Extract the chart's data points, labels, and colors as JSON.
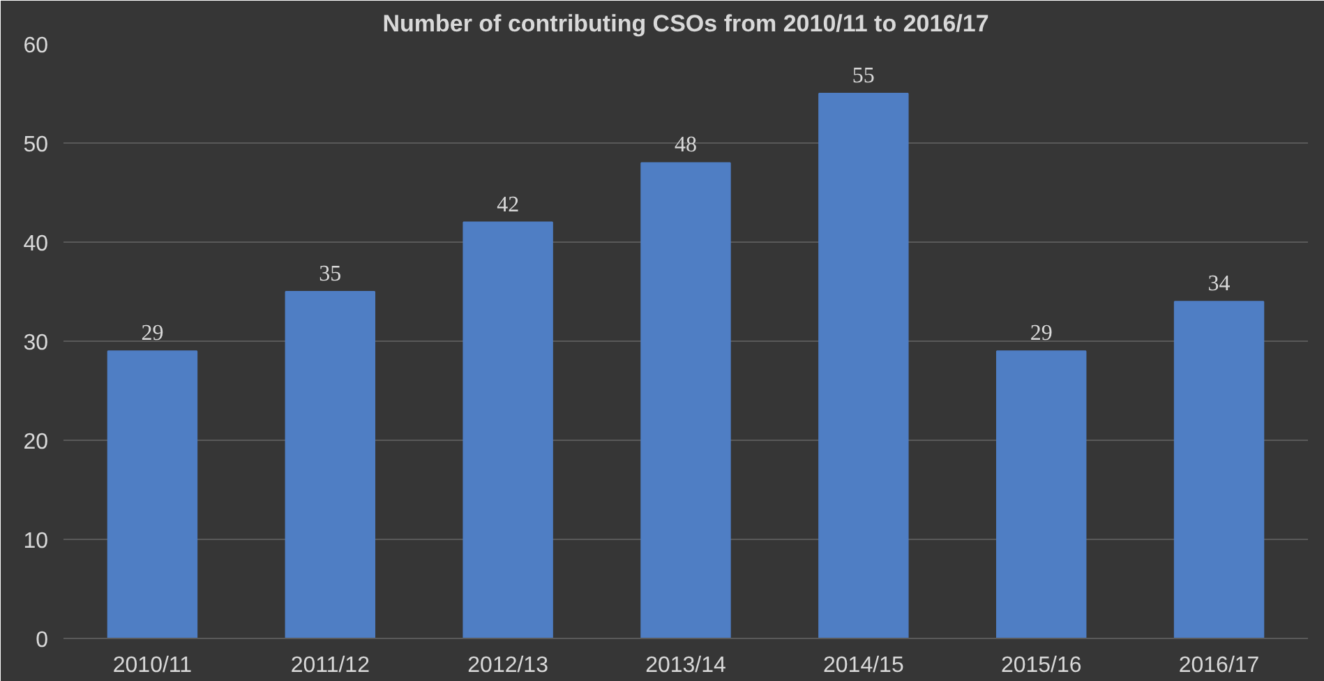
{
  "chart_data": {
    "type": "bar",
    "title": "Number of contributing CSOs from 2010/11 to 2016/17",
    "categories": [
      "2010/11",
      "2011/12",
      "2012/13",
      "2013/14",
      "2014/15",
      "2015/16",
      "2016/17"
    ],
    "values": [
      29,
      35,
      42,
      48,
      55,
      29,
      34
    ],
    "color": "#4f7ec4",
    "ylim": [
      0,
      60
    ],
    "yticks": [
      0,
      10,
      20,
      30,
      40,
      50,
      60
    ],
    "grid": "y",
    "data_labels": true
  }
}
